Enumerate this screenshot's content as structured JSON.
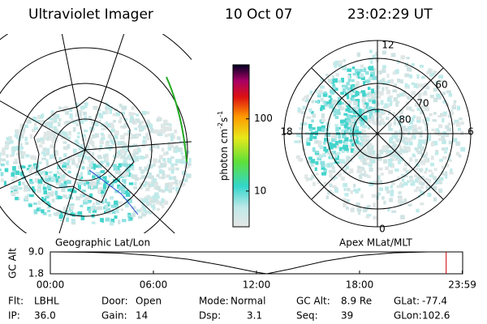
{
  "header": {
    "instrument": "Ultraviolet Imager",
    "date": "10 Oct 07",
    "time": "23:02:29 UT"
  },
  "left_map": {
    "label": "Geographic Lat/Lon"
  },
  "right_map": {
    "label": "Apex MLat/MLT",
    "mlt_labels": [
      "12",
      "18",
      "6",
      "0"
    ],
    "lat_labels": [
      "60",
      "70",
      "80"
    ]
  },
  "colorbar": {
    "label": [
      "photon cm",
      "-2",
      "s",
      "-1"
    ],
    "log": true,
    "lim": [
      3.2,
      560
    ],
    "ticks": [
      10,
      100
    ]
  },
  "altitude_plot": {
    "axis_label": "GC Alt",
    "xlim": [
      0,
      24
    ],
    "ylim": [
      1.8,
      9.0
    ],
    "yticks": [
      {
        "value": 9.0,
        "label": "9.0"
      },
      {
        "value": 1.8,
        "label": "1.8"
      }
    ],
    "xticks": [
      {
        "value": 0,
        "label": "00:00"
      },
      {
        "value": 6,
        "label": "06:00"
      },
      {
        "value": 12,
        "label": "12:00"
      },
      {
        "value": 18,
        "label": "18:00"
      },
      {
        "value": 23.98,
        "label": "23:59"
      }
    ],
    "x": [
      0,
      2,
      4,
      6,
      8,
      10,
      12,
      12.6,
      14,
      16,
      18,
      20,
      22,
      24
    ],
    "values": [
      9.0,
      8.9,
      8.6,
      7.8,
      6.6,
      4.6,
      2.3,
      1.8,
      3.4,
      6.0,
      7.8,
      8.7,
      9.0,
      9.0
    ],
    "marker_x": 23.04,
    "marker_color": "#cc0000"
  },
  "footer": {
    "rows": [
      [
        [
          "Flt:",
          "LBHL"
        ],
        [
          "Door:",
          "Open"
        ],
        [
          "Mode:",
          "Normal"
        ],
        [
          "GC Alt:",
          "8.9 Re"
        ],
        [
          "GLat:",
          "-77.4"
        ]
      ],
      [
        [
          "IP:",
          "36.0"
        ],
        [
          "Gain:",
          "14"
        ],
        [
          "Dsp:",
          "3.1"
        ],
        [
          "Seq:",
          "39"
        ],
        [
          "GLon:",
          "102.6"
        ]
      ]
    ]
  }
}
